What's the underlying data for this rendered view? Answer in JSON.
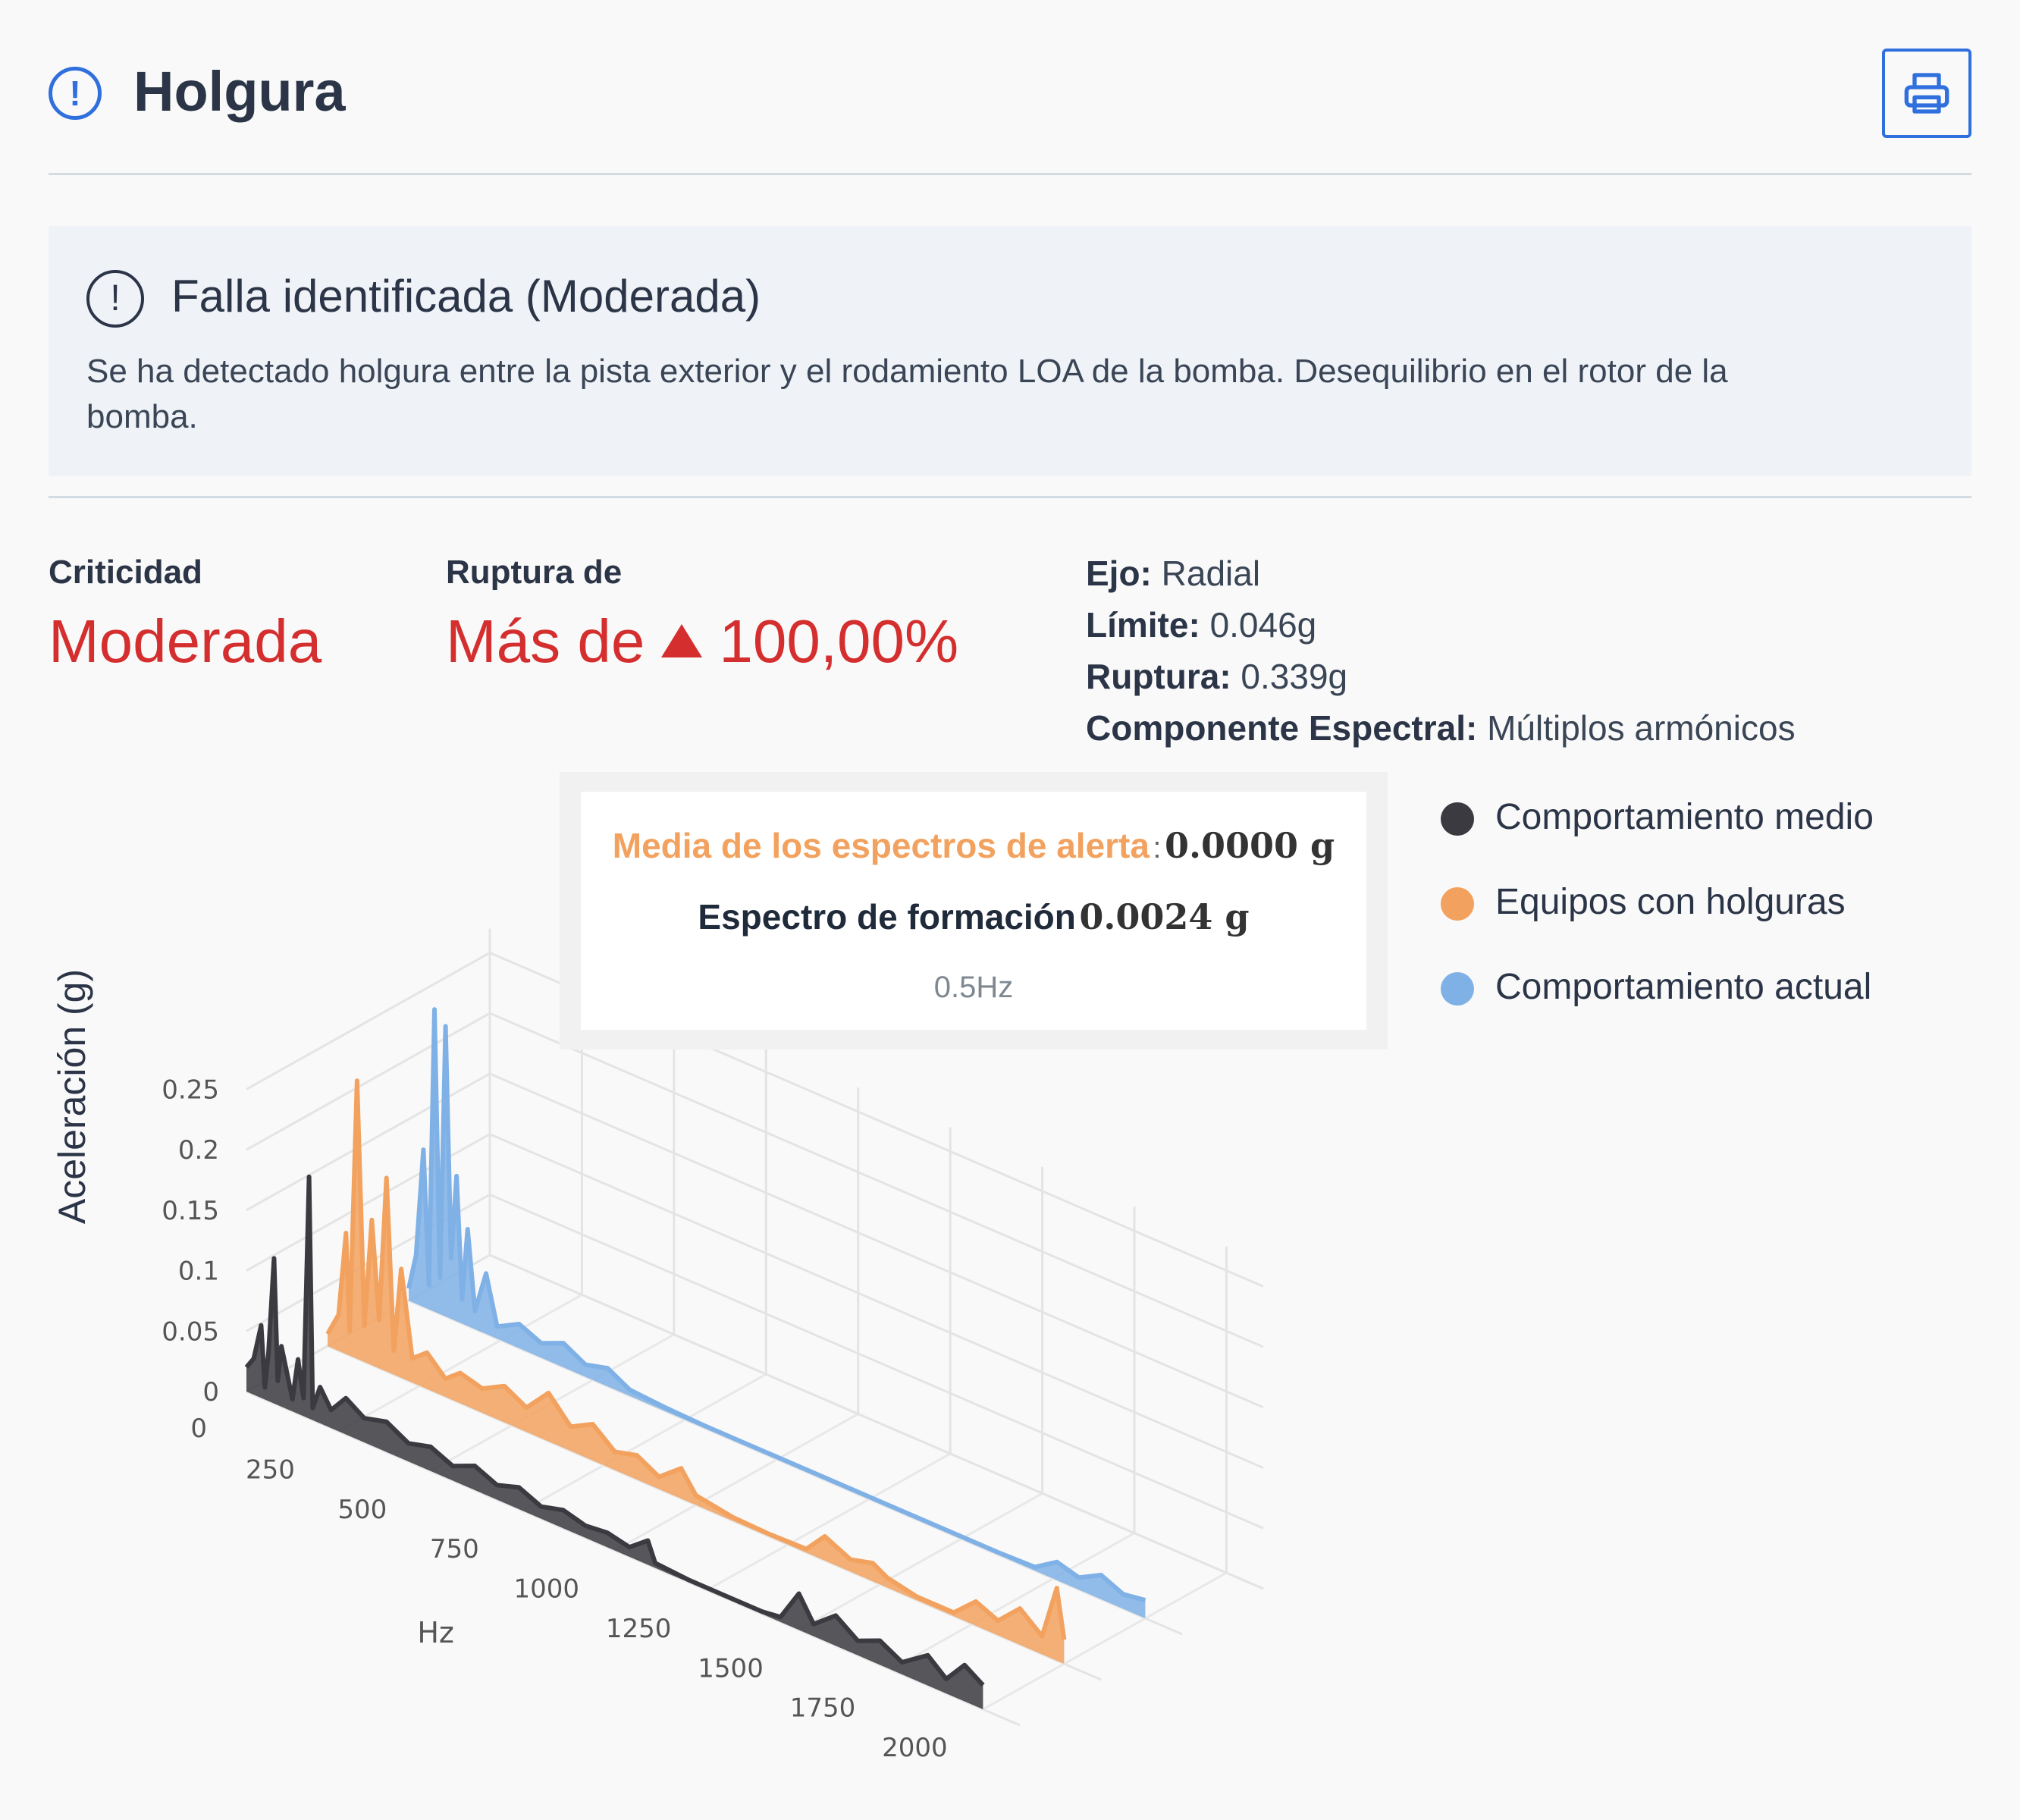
{
  "header": {
    "title": "Holgura",
    "print_icon": "printer-icon"
  },
  "fault": {
    "title": "Falla identificada (Moderada)",
    "description": "Se ha detectado holgura entre la pista exterior y el rodamiento LOA de la bomba. Desequilibrio en el rotor de la bomba."
  },
  "stats": {
    "criticality_label": "Criticidad",
    "criticality_value": "Moderada",
    "rupture_label": "Ruptura de",
    "rupture_prefix": "Más de",
    "rupture_value": "100,00%"
  },
  "details": {
    "axis_label": "Ejo:",
    "axis_value": "Radial",
    "limit_label": "Límite:",
    "limit_value": "0.046g",
    "rupture_label": "Ruptura:",
    "rupture_value": "0.339g",
    "component_label": "Componente Espectral:",
    "component_value": "Múltiplos armónicos"
  },
  "tooltip": {
    "row1_name": "Media de los espectros de alerta",
    "row1_sep": ":",
    "row1_value": "0.0000 g",
    "row2_name": "Espectro de formación",
    "row2_value": "0.0024 g",
    "freq": "0.5Hz"
  },
  "colors": {
    "accent": "#2f6fde",
    "danger": "#d42e2e",
    "series_dark": "#3a3a40",
    "series_orange": "#f2a25e",
    "series_blue": "#7fb1e6"
  },
  "chart_data": {
    "type": "line",
    "subtype": "3d-waterfall",
    "ylabel": "Aceleración (g)",
    "xlabel": "Hz",
    "x_ticks": [
      250,
      500,
      750,
      1000,
      1250,
      1500,
      1750,
      2000
    ],
    "y_ticks": [
      "0",
      "0.05",
      "0.1",
      "0.15",
      "0.2",
      "0.25"
    ],
    "z_tick_label": "0",
    "ylim": [
      0,
      0.28
    ],
    "xlim": [
      0,
      2100
    ],
    "legend_position": "right",
    "series": [
      {
        "name": "Comportamiento medio",
        "color": "#3a3a40",
        "points": [
          [
            0,
            0.02
          ],
          [
            20,
            0.03
          ],
          [
            40,
            0.06
          ],
          [
            50,
            0.01
          ],
          [
            60,
            0.04
          ],
          [
            75,
            0.12
          ],
          [
            85,
            0.02
          ],
          [
            95,
            0.05
          ],
          [
            110,
            0.03
          ],
          [
            125,
            0.01
          ],
          [
            140,
            0.045
          ],
          [
            155,
            0.015
          ],
          [
            170,
            0.2
          ],
          [
            180,
            0.01
          ],
          [
            200,
            0.03
          ],
          [
            230,
            0.015
          ],
          [
            270,
            0.03
          ],
          [
            320,
            0.02
          ],
          [
            380,
            0.025
          ],
          [
            440,
            0.015
          ],
          [
            500,
            0.02
          ],
          [
            560,
            0.012
          ],
          [
            620,
            0.02
          ],
          [
            680,
            0.012
          ],
          [
            740,
            0.018
          ],
          [
            800,
            0.01
          ],
          [
            860,
            0.015
          ],
          [
            920,
            0.01
          ],
          [
            980,
            0.012
          ],
          [
            1040,
            0.008
          ],
          [
            1090,
            0.02
          ],
          [
            1110,
            0.004
          ],
          [
            1200,
            0.002
          ],
          [
            1300,
            0.002
          ],
          [
            1400,
            0.002
          ],
          [
            1450,
            0.004
          ],
          [
            1500,
            0.03
          ],
          [
            1540,
            0.01
          ],
          [
            1600,
            0.025
          ],
          [
            1660,
            0.012
          ],
          [
            1720,
            0.02
          ],
          [
            1780,
            0.01
          ],
          [
            1850,
            0.025
          ],
          [
            1900,
            0.012
          ],
          [
            1950,
            0.03
          ],
          [
            2000,
            0.02
          ]
        ]
      },
      {
        "name": "Equipos con holguras",
        "color": "#f2a25e",
        "points": [
          [
            0,
            0.01
          ],
          [
            30,
            0.03
          ],
          [
            50,
            0.1
          ],
          [
            60,
            0.02
          ],
          [
            80,
            0.23
          ],
          [
            100,
            0.03
          ],
          [
            120,
            0.12
          ],
          [
            140,
            0.04
          ],
          [
            160,
            0.16
          ],
          [
            180,
            0.02
          ],
          [
            200,
            0.09
          ],
          [
            230,
            0.02
          ],
          [
            270,
            0.03
          ],
          [
            320,
            0.015
          ],
          [
            360,
            0.025
          ],
          [
            420,
            0.02
          ],
          [
            480,
            0.03
          ],
          [
            540,
            0.02
          ],
          [
            600,
            0.04
          ],
          [
            660,
            0.02
          ],
          [
            720,
            0.03
          ],
          [
            780,
            0.015
          ],
          [
            840,
            0.02
          ],
          [
            900,
            0.01
          ],
          [
            960,
            0.025
          ],
          [
            1000,
            0.008
          ],
          [
            1100,
            0.003
          ],
          [
            1200,
            0.002
          ],
          [
            1300,
            0.003
          ],
          [
            1350,
            0.02
          ],
          [
            1420,
            0.01
          ],
          [
            1480,
            0.015
          ],
          [
            1520,
            0.008
          ],
          [
            1600,
            0.003
          ],
          [
            1700,
            0.003
          ],
          [
            1760,
            0.02
          ],
          [
            1820,
            0.012
          ],
          [
            1880,
            0.03
          ],
          [
            1940,
            0.015
          ],
          [
            1980,
            0.06
          ],
          [
            2000,
            0.02
          ]
        ]
      },
      {
        "name": "Comportamiento actual",
        "color": "#7fb1e6",
        "points": [
          [
            0,
            0.01
          ],
          [
            20,
            0.04
          ],
          [
            40,
            0.13
          ],
          [
            55,
            0.02
          ],
          [
            70,
            0.25
          ],
          [
            85,
            0.03
          ],
          [
            100,
            0.24
          ],
          [
            115,
            0.05
          ],
          [
            130,
            0.12
          ],
          [
            145,
            0.02
          ],
          [
            160,
            0.08
          ],
          [
            180,
            0.015
          ],
          [
            210,
            0.05
          ],
          [
            240,
            0.01
          ],
          [
            300,
            0.02
          ],
          [
            360,
            0.012
          ],
          [
            420,
            0.02
          ],
          [
            480,
            0.01
          ],
          [
            540,
            0.015
          ],
          [
            600,
            0.005
          ],
          [
            700,
            0.003
          ],
          [
            800,
            0.002
          ],
          [
            900,
            0.002
          ],
          [
            1000,
            0.002
          ],
          [
            1100,
            0.002
          ],
          [
            1200,
            0.002
          ],
          [
            1300,
            0.002
          ],
          [
            1400,
            0.002
          ],
          [
            1500,
            0.002
          ],
          [
            1600,
            0.002
          ],
          [
            1700,
            0.003
          ],
          [
            1760,
            0.015
          ],
          [
            1820,
            0.01
          ],
          [
            1880,
            0.02
          ],
          [
            1940,
            0.012
          ],
          [
            2000,
            0.015
          ]
        ]
      }
    ]
  }
}
